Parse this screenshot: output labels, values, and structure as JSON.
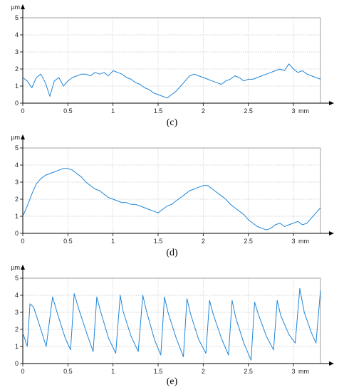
{
  "figure": {
    "axis_color": "#000000",
    "grid_color": "#c8c8c8",
    "line_color": "#1f86d8",
    "unit_y": "µm",
    "unit_x": "mm"
  },
  "chart_data": [
    {
      "type": "line",
      "caption": "(c)",
      "ylabel": "µm",
      "xlabel": "mm",
      "xlim": [
        0,
        3.3
      ],
      "ylim": [
        0,
        5
      ],
      "x_ticks": [
        0,
        0.5,
        1,
        1.5,
        2,
        2.5,
        3
      ],
      "x_tick_labels": [
        "0",
        "0.5",
        "1",
        "1.5",
        "2",
        "2.5",
        "3"
      ],
      "y_ticks": [
        0,
        1,
        2,
        3,
        4,
        5
      ],
      "y_tick_labels": [
        "0",
        "1",
        "2",
        "3",
        "4",
        "5"
      ],
      "grid": true,
      "series": [
        {
          "x": [
            0,
            0.05,
            0.1,
            0.15,
            0.2,
            0.25,
            0.3,
            0.35,
            0.4,
            0.45,
            0.5,
            0.55,
            0.6,
            0.65,
            0.7,
            0.75,
            0.8,
            0.85,
            0.9,
            0.95,
            1.0,
            1.05,
            1.1,
            1.15,
            1.2,
            1.25,
            1.3,
            1.35,
            1.4,
            1.45,
            1.5,
            1.55,
            1.6,
            1.65,
            1.7,
            1.75,
            1.8,
            1.85,
            1.9,
            1.95,
            2.0,
            2.05,
            2.1,
            2.15,
            2.2,
            2.25,
            2.3,
            2.35,
            2.4,
            2.45,
            2.5,
            2.55,
            2.6,
            2.65,
            2.7,
            2.75,
            2.8,
            2.85,
            2.9,
            2.95,
            3.0,
            3.05,
            3.1,
            3.15,
            3.2,
            3.25,
            3.3
          ],
          "y": [
            1.5,
            1.3,
            0.9,
            1.5,
            1.7,
            1.2,
            0.4,
            1.3,
            1.5,
            1.0,
            1.3,
            1.5,
            1.6,
            1.7,
            1.7,
            1.6,
            1.8,
            1.7,
            1.8,
            1.6,
            1.9,
            1.8,
            1.7,
            1.5,
            1.4,
            1.2,
            1.1,
            0.9,
            0.8,
            0.6,
            0.5,
            0.4,
            0.3,
            0.5,
            0.7,
            1.0,
            1.3,
            1.6,
            1.7,
            1.6,
            1.5,
            1.4,
            1.3,
            1.2,
            1.1,
            1.3,
            1.4,
            1.6,
            1.5,
            1.3,
            1.4,
            1.4,
            1.5,
            1.6,
            1.7,
            1.8,
            1.9,
            2.0,
            1.9,
            2.3,
            2.0,
            1.8,
            1.9,
            1.7,
            1.6,
            1.5,
            1.4
          ]
        }
      ]
    },
    {
      "type": "line",
      "caption": "(d)",
      "ylabel": "µm",
      "xlabel": "mm",
      "xlim": [
        0,
        3.3
      ],
      "ylim": [
        0,
        5
      ],
      "x_ticks": [
        0,
        0.5,
        1,
        1.5,
        2,
        2.5,
        3
      ],
      "x_tick_labels": [
        "0",
        "0.5",
        "1",
        "1.5",
        "2",
        "2.5",
        "3"
      ],
      "y_ticks": [
        0,
        1,
        2,
        3,
        4,
        5
      ],
      "y_tick_labels": [
        "0",
        "1",
        "2",
        "3",
        "4",
        "5"
      ],
      "grid": true,
      "series": [
        {
          "x": [
            0,
            0.05,
            0.1,
            0.15,
            0.2,
            0.25,
            0.3,
            0.35,
            0.4,
            0.45,
            0.5,
            0.55,
            0.6,
            0.65,
            0.7,
            0.75,
            0.8,
            0.85,
            0.9,
            0.95,
            1.0,
            1.05,
            1.1,
            1.15,
            1.2,
            1.25,
            1.3,
            1.35,
            1.4,
            1.45,
            1.5,
            1.55,
            1.6,
            1.65,
            1.7,
            1.75,
            1.8,
            1.85,
            1.9,
            1.95,
            2.0,
            2.05,
            2.1,
            2.15,
            2.2,
            2.25,
            2.3,
            2.35,
            2.4,
            2.45,
            2.5,
            2.55,
            2.6,
            2.65,
            2.7,
            2.75,
            2.8,
            2.85,
            2.9,
            2.95,
            3.0,
            3.05,
            3.1,
            3.15,
            3.2,
            3.25,
            3.3
          ],
          "y": [
            1.0,
            1.6,
            2.3,
            2.9,
            3.2,
            3.4,
            3.5,
            3.6,
            3.7,
            3.8,
            3.8,
            3.7,
            3.5,
            3.3,
            3.0,
            2.8,
            2.6,
            2.5,
            2.3,
            2.1,
            2.0,
            1.9,
            1.8,
            1.8,
            1.7,
            1.7,
            1.6,
            1.5,
            1.4,
            1.3,
            1.2,
            1.4,
            1.6,
            1.7,
            1.9,
            2.1,
            2.3,
            2.5,
            2.6,
            2.7,
            2.8,
            2.8,
            2.6,
            2.4,
            2.2,
            2.0,
            1.7,
            1.5,
            1.3,
            1.1,
            0.8,
            0.6,
            0.4,
            0.3,
            0.2,
            0.3,
            0.5,
            0.6,
            0.4,
            0.5,
            0.6,
            0.7,
            0.5,
            0.6,
            0.9,
            1.2,
            1.5
          ]
        }
      ]
    },
    {
      "type": "line",
      "caption": "(e)",
      "ylabel": "µm",
      "xlabel": "mm",
      "xlim": [
        0,
        3.3
      ],
      "ylim": [
        0,
        5
      ],
      "x_ticks": [
        0,
        0.5,
        1,
        1.5,
        2,
        2.5,
        3
      ],
      "x_tick_labels": [
        "0",
        "0.5",
        "1",
        "1.5",
        "2",
        "2.5",
        "3"
      ],
      "y_ticks": [
        0,
        1,
        2,
        3,
        4,
        5
      ],
      "y_tick_labels": [
        "0",
        "1",
        "2",
        "3",
        "4",
        "5"
      ],
      "grid": true,
      "series": [
        {
          "x": [
            0,
            0.05,
            0.08,
            0.12,
            0.2,
            0.26,
            0.33,
            0.38,
            0.47,
            0.53,
            0.57,
            0.62,
            0.72,
            0.78,
            0.82,
            0.86,
            0.95,
            1.03,
            1.08,
            1.11,
            1.2,
            1.28,
            1.33,
            1.37,
            1.46,
            1.53,
            1.57,
            1.61,
            1.7,
            1.78,
            1.82,
            1.86,
            1.95,
            2.03,
            2.07,
            2.11,
            2.2,
            2.28,
            2.32,
            2.36,
            2.45,
            2.53,
            2.57,
            2.61,
            2.7,
            2.78,
            2.82,
            2.86,
            2.95,
            3.02,
            3.07,
            3.12,
            3.2,
            3.25,
            3.3
          ],
          "y": [
            1.8,
            1.0,
            3.5,
            3.3,
            2.0,
            1.0,
            3.9,
            3.0,
            1.5,
            0.8,
            4.1,
            3.2,
            1.6,
            0.7,
            3.9,
            3.1,
            1.5,
            0.6,
            4.0,
            3.1,
            1.6,
            0.7,
            4.0,
            3.1,
            1.4,
            0.5,
            3.9,
            3.0,
            1.5,
            0.4,
            3.8,
            2.9,
            1.4,
            0.6,
            3.7,
            2.9,
            1.5,
            0.5,
            3.7,
            2.7,
            1.2,
            0.2,
            3.6,
            2.9,
            1.6,
            0.8,
            3.7,
            2.8,
            1.7,
            1.2,
            4.4,
            3.0,
            1.8,
            1.2,
            4.3
          ]
        }
      ]
    }
  ]
}
